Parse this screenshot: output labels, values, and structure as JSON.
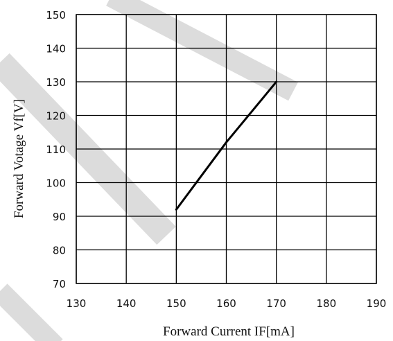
{
  "chart_data": {
    "type": "line",
    "title": "",
    "xlabel": "Forward Current IF[mA]",
    "ylabel": "Forward Votage Vf[V]",
    "xlim": [
      130,
      190
    ],
    "ylim": [
      70,
      150
    ],
    "xticks": [
      "130",
      "140",
      "150",
      "160",
      "170",
      "180",
      "190"
    ],
    "yticks": [
      "70",
      "80",
      "90",
      "100",
      "110",
      "120",
      "130",
      "140",
      "150"
    ],
    "grid": true,
    "legend": "none",
    "series": [
      {
        "x": [
          150,
          155,
          160,
          165,
          170
        ],
        "y": [
          92,
          102,
          112,
          121,
          130
        ],
        "color": "#000000"
      }
    ],
    "watermark_color": "#dcdcdc"
  }
}
